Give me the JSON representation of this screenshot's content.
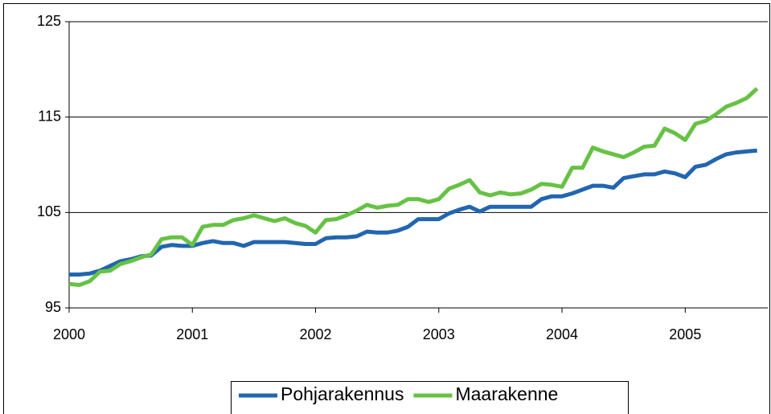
{
  "chart_data": {
    "type": "line",
    "x": [
      2000,
      2000.083,
      2000.167,
      2000.25,
      2000.333,
      2000.417,
      2000.5,
      2000.583,
      2000.667,
      2000.75,
      2000.833,
      2000.917,
      2001,
      2001.083,
      2001.167,
      2001.25,
      2001.333,
      2001.417,
      2001.5,
      2001.583,
      2001.667,
      2001.75,
      2001.833,
      2001.917,
      2002,
      2002.083,
      2002.167,
      2002.25,
      2002.333,
      2002.417,
      2002.5,
      2002.583,
      2002.667,
      2002.75,
      2002.833,
      2002.917,
      2003,
      2003.083,
      2003.167,
      2003.25,
      2003.333,
      2003.417,
      2003.5,
      2003.583,
      2003.667,
      2003.75,
      2003.833,
      2003.917,
      2004,
      2004.083,
      2004.167,
      2004.25,
      2004.333,
      2004.417,
      2004.5,
      2004.583,
      2004.667,
      2004.75,
      2004.833,
      2004.917,
      2005,
      2005.083,
      2005.167,
      2005.25,
      2005.333,
      2005.417,
      2005.5,
      2005.583
    ],
    "series": [
      {
        "name": "Pohjarakennus",
        "color": "#2166b0",
        "values": [
          98.5,
          98.5,
          98.6,
          98.9,
          99.4,
          99.9,
          100.1,
          100.4,
          100.5,
          101.4,
          101.6,
          101.5,
          101.5,
          101.8,
          102.0,
          101.8,
          101.8,
          101.5,
          101.9,
          101.9,
          101.9,
          101.9,
          101.8,
          101.7,
          101.7,
          102.3,
          102.4,
          102.4,
          102.5,
          103.0,
          102.9,
          102.9,
          103.1,
          103.5,
          104.3,
          104.3,
          104.3,
          104.9,
          105.3,
          105.6,
          105.1,
          105.6,
          105.6,
          105.6,
          105.6,
          105.6,
          106.4,
          106.7,
          106.7,
          107.0,
          107.4,
          107.8,
          107.8,
          107.6,
          108.6,
          108.8,
          109.0,
          109.0,
          109.3,
          109.1,
          108.7,
          109.8,
          110.0,
          110.6,
          111.1,
          111.3,
          111.4,
          111.5
        ]
      },
      {
        "name": "Maarakenne",
        "color": "#66c244",
        "values": [
          97.5,
          97.4,
          97.8,
          98.8,
          98.9,
          99.6,
          99.9,
          100.3,
          100.6,
          102.2,
          102.4,
          102.4,
          101.6,
          103.5,
          103.7,
          103.7,
          104.2,
          104.4,
          104.7,
          104.4,
          104.1,
          104.4,
          103.9,
          103.6,
          102.9,
          104.2,
          104.3,
          104.7,
          105.2,
          105.8,
          105.5,
          105.7,
          105.8,
          106.4,
          106.4,
          106.1,
          106.4,
          107.5,
          107.9,
          108.4,
          107.1,
          106.8,
          107.1,
          106.9,
          107.0,
          107.4,
          108.0,
          107.9,
          107.7,
          109.7,
          109.7,
          111.8,
          111.4,
          111.1,
          110.8,
          111.3,
          111.9,
          112.0,
          113.8,
          113.3,
          112.6,
          114.3,
          114.6,
          115.3,
          116.1,
          116.5,
          117.0,
          118.0
        ]
      }
    ],
    "xlim": [
      2000,
      2005.67
    ],
    "xticks": [
      2000,
      2001,
      2002,
      2003,
      2004,
      2005
    ],
    "ylim": [
      95,
      125
    ],
    "yticks": [
      95,
      105,
      115,
      125
    ],
    "grid": true,
    "legend": "bottom"
  }
}
